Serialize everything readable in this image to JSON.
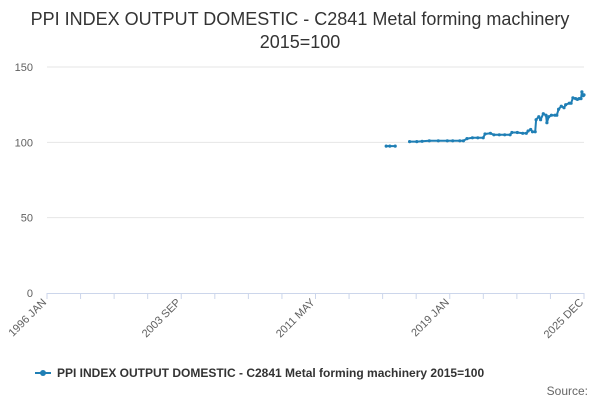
{
  "chart_data": {
    "type": "line",
    "title": "PPI INDEX OUTPUT DOMESTIC - C2841 Metal forming machinery 2015=100",
    "xlabel": "",
    "ylabel": "",
    "x_tick_labels": [
      "1996 JAN",
      "2003 SEP",
      "2011 MAY",
      "2019 JAN",
      "2025 DEC"
    ],
    "x_range": [
      1996.0,
      2025.917
    ],
    "ylim": [
      0,
      150
    ],
    "y_ticks": [
      0,
      50,
      100,
      150
    ],
    "grid": true,
    "legend_position": "bottom",
    "series": [
      {
        "name": "PPI INDEX OUTPUT DOMESTIC - C2841 Metal forming machinery 2015=100",
        "color": "#1f7fb5",
        "segments": [
          [
            [
              2014.9,
              97.5
            ],
            [
              2015.1,
              97.5
            ],
            [
              2015.4,
              97.5
            ]
          ],
          [
            [
              2016.2,
              100.5
            ],
            [
              2016.6,
              100.5
            ],
            [
              2016.9,
              100.7
            ],
            [
              2017.3,
              101
            ],
            [
              2017.8,
              101
            ],
            [
              2018.3,
              101
            ],
            [
              2018.6,
              101
            ],
            [
              2019.0,
              101
            ],
            [
              2019.2,
              101
            ],
            [
              2019.4,
              102.5
            ],
            [
              2019.7,
              103
            ],
            [
              2020.0,
              103
            ],
            [
              2020.3,
              103
            ],
            [
              2020.4,
              105.5
            ],
            [
              2020.7,
              106
            ],
            [
              2020.9,
              105
            ],
            [
              2021.2,
              105
            ],
            [
              2021.5,
              105
            ],
            [
              2021.8,
              105
            ],
            [
              2021.9,
              106.5
            ],
            [
              2022.2,
              106.5
            ],
            [
              2022.5,
              106
            ],
            [
              2022.7,
              106
            ],
            [
              2022.8,
              107.5
            ],
            [
              2022.95,
              108.5
            ],
            [
              2023.05,
              107
            ],
            [
              2023.2,
              107
            ],
            [
              2023.25,
              115
            ],
            [
              2023.4,
              117
            ],
            [
              2023.5,
              115
            ],
            [
              2023.65,
              119
            ],
            [
              2023.8,
              118
            ],
            [
              2023.85,
              113
            ],
            [
              2023.95,
              117
            ],
            [
              2024.1,
              118
            ],
            [
              2024.3,
              118
            ],
            [
              2024.4,
              118
            ],
            [
              2024.5,
              122
            ],
            [
              2024.65,
              124
            ],
            [
              2024.8,
              123
            ],
            [
              2024.9,
              125
            ],
            [
              2025.1,
              126
            ],
            [
              2025.2,
              126
            ],
            [
              2025.3,
              129.5
            ],
            [
              2025.45,
              129
            ],
            [
              2025.55,
              128.5
            ],
            [
              2025.65,
              129
            ],
            [
              2025.75,
              129
            ],
            [
              2025.8,
              133.5
            ],
            [
              2025.88,
              131
            ],
            [
              2025.917,
              131.5
            ]
          ]
        ]
      }
    ]
  },
  "source_label": "Source:"
}
